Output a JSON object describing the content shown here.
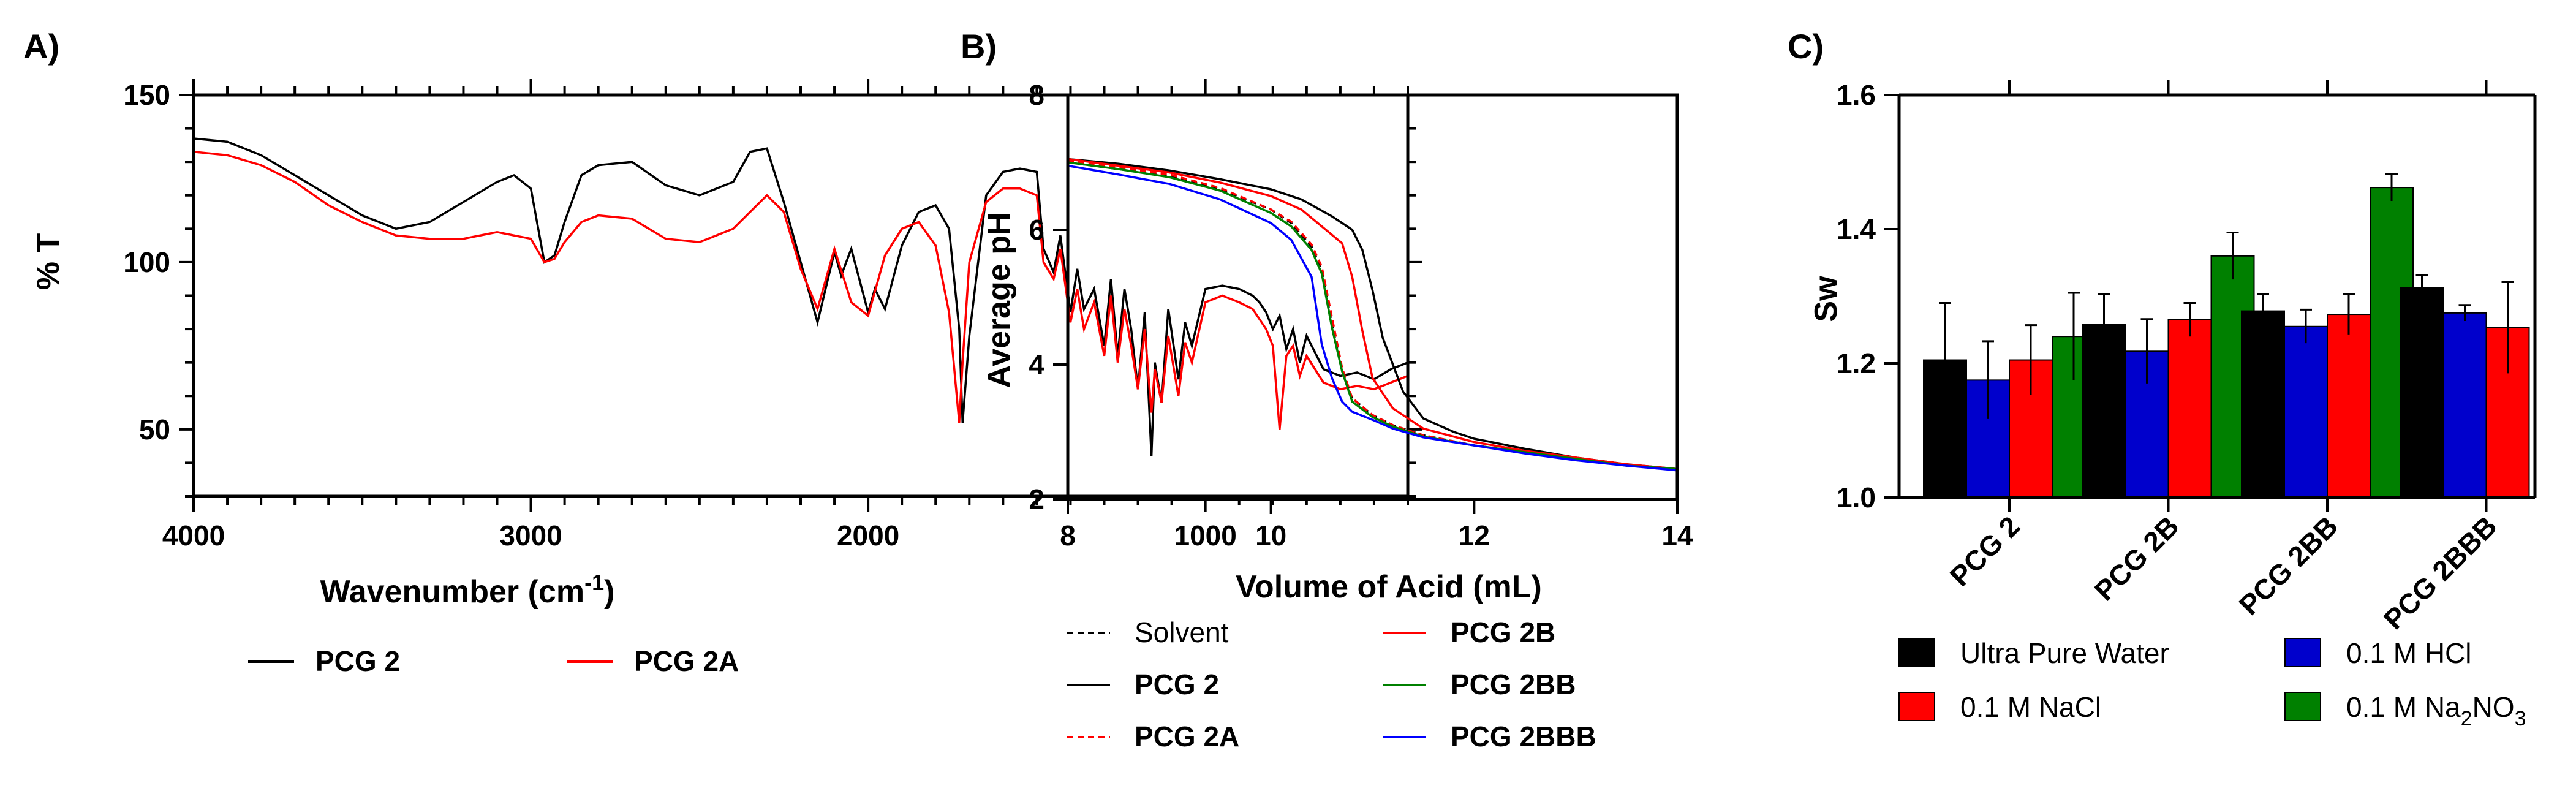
{
  "chart_data": [
    {
      "panel_label": "A)",
      "type": "line",
      "title": "",
      "xlabel": "Wavenumber (cm",
      "xlabel_sup": "-1",
      "xlabel_end": ")",
      "ylabel": "% T",
      "xlim": [
        4000,
        400
      ],
      "ylim": [
        30,
        150
      ],
      "xticks": [
        4000,
        3000,
        2000,
        1000
      ],
      "yticks": [
        50,
        100,
        150
      ],
      "series": [
        {
          "name": "PCG 2",
          "color": "#000000",
          "dash": "solid",
          "x": [
            4000,
            3900,
            3800,
            3700,
            3600,
            3500,
            3400,
            3300,
            3200,
            3100,
            3050,
            3000,
            2960,
            2930,
            2900,
            2850,
            2800,
            2700,
            2600,
            2500,
            2400,
            2350,
            2300,
            2250,
            2200,
            2150,
            2100,
            2080,
            2050,
            2000,
            1980,
            1950,
            1900,
            1850,
            1800,
            1760,
            1730,
            1720,
            1700,
            1650,
            1600,
            1550,
            1500,
            1480,
            1450,
            1430,
            1400,
            1380,
            1360,
            1330,
            1300,
            1280,
            1260,
            1240,
            1220,
            1200,
            1180,
            1160,
            1150,
            1130,
            1110,
            1080,
            1060,
            1040,
            1000,
            950,
            900,
            860,
            840,
            820,
            800,
            780,
            760,
            740,
            720,
            700,
            650,
            600,
            550,
            500,
            450,
            400
          ],
          "y": [
            137,
            136,
            132,
            126,
            120,
            114,
            110,
            112,
            118,
            124,
            126,
            122,
            100,
            102,
            112,
            126,
            129,
            130,
            123,
            120,
            124,
            133,
            134,
            118,
            100,
            82,
            103,
            96,
            104,
            85,
            92,
            86,
            105,
            115,
            117,
            110,
            80,
            52,
            78,
            120,
            127,
            128,
            127,
            104,
            97,
            108,
            85,
            98,
            86,
            92,
            75,
            95,
            72,
            92,
            80,
            62,
            85,
            42,
            70,
            58,
            86,
            65,
            82,
            75,
            92,
            93,
            92,
            90,
            88,
            85,
            80,
            84,
            74,
            80,
            70,
            78,
            68,
            66,
            67,
            65,
            68,
            70
          ]
        },
        {
          "name": "PCG 2A",
          "color": "#ff0000",
          "dash": "solid",
          "x": [
            4000,
            3900,
            3800,
            3700,
            3600,
            3500,
            3400,
            3300,
            3200,
            3100,
            3000,
            2960,
            2930,
            2900,
            2850,
            2800,
            2700,
            2600,
            2500,
            2400,
            2350,
            2300,
            2250,
            2200,
            2150,
            2100,
            2050,
            2000,
            1950,
            1900,
            1850,
            1800,
            1760,
            1730,
            1720,
            1700,
            1650,
            1600,
            1550,
            1500,
            1480,
            1450,
            1430,
            1400,
            1380,
            1360,
            1330,
            1300,
            1280,
            1260,
            1240,
            1220,
            1200,
            1180,
            1160,
            1150,
            1130,
            1110,
            1080,
            1060,
            1040,
            1000,
            950,
            900,
            860,
            840,
            820,
            800,
            780,
            760,
            740,
            720,
            700,
            650,
            600,
            550,
            500,
            450,
            400
          ],
          "y": [
            133,
            132,
            129,
            124,
            117,
            112,
            108,
            107,
            107,
            109,
            107,
            100,
            101,
            106,
            112,
            114,
            113,
            107,
            106,
            110,
            115,
            120,
            115,
            98,
            86,
            104,
            88,
            84,
            102,
            110,
            112,
            105,
            85,
            52,
            70,
            100,
            118,
            122,
            122,
            120,
            100,
            95,
            104,
            82,
            92,
            80,
            88,
            72,
            90,
            70,
            86,
            75,
            62,
            80,
            55,
            68,
            58,
            78,
            60,
            76,
            70,
            88,
            90,
            88,
            86,
            83,
            80,
            75,
            50,
            72,
            75,
            66,
            72,
            64,
            62,
            63,
            62,
            64,
            66
          ]
        }
      ],
      "legend_position": "bottom",
      "legend_columns": 2
    },
    {
      "panel_label": "B)",
      "type": "line",
      "title": "",
      "xlabel": "Volume of Acid  (mL)",
      "ylabel": "Average pH",
      "xlim": [
        8,
        14
      ],
      "ylim": [
        2,
        8
      ],
      "xticks": [
        8,
        10,
        12,
        14
      ],
      "yticks": [
        2,
        4,
        6,
        8
      ],
      "series": [
        {
          "name": "Solvent",
          "color": "#000000",
          "dash": "dashed",
          "bold_label": false,
          "x": [
            8,
            8.5,
            9,
            9.5,
            10,
            10.2,
            10.4,
            10.5,
            10.6,
            10.7,
            10.8,
            11,
            11.2,
            11.5,
            12,
            12.5,
            13,
            13.5,
            14
          ],
          "y": [
            7.0,
            6.9,
            6.8,
            6.6,
            6.3,
            6.1,
            5.75,
            5.4,
            4.6,
            3.9,
            3.5,
            3.25,
            3.1,
            2.95,
            2.8,
            2.7,
            2.6,
            2.5,
            2.45
          ]
        },
        {
          "name": "PCG 2",
          "color": "#000000",
          "dash": "solid",
          "bold_label": true,
          "x": [
            8,
            8.5,
            9,
            9.5,
            10,
            10.3,
            10.6,
            10.8,
            10.9,
            11,
            11.1,
            11.3,
            11.5,
            11.8,
            12,
            12.5,
            13,
            13.5,
            14
          ],
          "y": [
            7.05,
            6.98,
            6.88,
            6.75,
            6.6,
            6.45,
            6.2,
            6.0,
            5.7,
            5.1,
            4.4,
            3.6,
            3.2,
            3.0,
            2.9,
            2.75,
            2.62,
            2.52,
            2.45
          ]
        },
        {
          "name": "PCG 2A",
          "color": "#ff0000",
          "dash": "dashed",
          "bold_label": true,
          "x": [
            8,
            8.5,
            9,
            9.5,
            10,
            10.2,
            10.4,
            10.5,
            10.6,
            10.7,
            10.8,
            11,
            11.2,
            11.5,
            12,
            12.5,
            13,
            13.5,
            14
          ],
          "y": [
            7.02,
            6.92,
            6.82,
            6.62,
            6.3,
            6.12,
            5.78,
            5.45,
            4.7,
            3.95,
            3.5,
            3.25,
            3.1,
            2.95,
            2.8,
            2.7,
            2.6,
            2.5,
            2.45
          ]
        },
        {
          "name": "PCG 2B",
          "color": "#ff0000",
          "dash": "solid",
          "bold_label": true,
          "x": [
            8,
            8.5,
            9,
            9.5,
            10,
            10.3,
            10.5,
            10.7,
            10.8,
            10.9,
            11,
            11.2,
            11.5,
            12,
            12.5,
            13,
            13.5,
            14
          ],
          "y": [
            7.05,
            6.95,
            6.85,
            6.7,
            6.5,
            6.3,
            6.05,
            5.8,
            5.3,
            4.5,
            3.8,
            3.35,
            3.05,
            2.85,
            2.72,
            2.62,
            2.52,
            2.45
          ]
        },
        {
          "name": "PCG 2BB",
          "color": "#008000",
          "dash": "solid",
          "bold_label": true,
          "x": [
            8,
            8.5,
            9,
            9.5,
            10,
            10.2,
            10.4,
            10.5,
            10.6,
            10.7,
            10.8,
            11,
            11.2,
            11.5,
            12,
            12.5,
            13,
            13.5,
            14
          ],
          "y": [
            7.0,
            6.9,
            6.78,
            6.58,
            6.25,
            6.05,
            5.7,
            5.35,
            4.55,
            3.9,
            3.45,
            3.22,
            3.08,
            2.93,
            2.8,
            2.7,
            2.6,
            2.5,
            2.45
          ]
        },
        {
          "name": "PCG 2BBB",
          "color": "#0000ff",
          "dash": "solid",
          "bold_label": true,
          "x": [
            8,
            8.5,
            9,
            9.5,
            10,
            10.2,
            10.4,
            10.5,
            10.6,
            10.7,
            10.8,
            11,
            11.2,
            11.5,
            12,
            12.5,
            13,
            13.5,
            14
          ],
          "y": [
            6.95,
            6.82,
            6.68,
            6.45,
            6.1,
            5.85,
            5.3,
            4.3,
            3.8,
            3.45,
            3.3,
            3.18,
            3.05,
            2.92,
            2.8,
            2.68,
            2.58,
            2.5,
            2.43
          ]
        }
      ],
      "legend_position": "bottom",
      "legend_columns": 2
    },
    {
      "panel_label": "C)",
      "type": "bar",
      "title": "",
      "xlabel": "",
      "ylabel": "Sw",
      "ylim": [
        1.0,
        1.6
      ],
      "yticks": [
        "1.0",
        "1.2",
        "1.4",
        "1.6"
      ],
      "categories": [
        "PCG 2",
        "PCG 2B",
        "PCG 2BB",
        "PCG 2BBB"
      ],
      "series": [
        {
          "name": "Ultra Pure Water",
          "color": "#000000",
          "values": [
            1.205,
            1.258,
            1.278,
            1.313
          ],
          "errors": [
            0.085,
            0.045,
            0.025,
            0.018
          ]
        },
        {
          "name": "0.1 M HCl",
          "color": "#0000cc",
          "values": [
            1.175,
            1.218,
            1.255,
            1.275
          ],
          "errors": [
            0.058,
            0.048,
            0.025,
            0.012
          ]
        },
        {
          "name": "0.1 M NaCl",
          "color": "#ff0000",
          "values": [
            1.205,
            1.265,
            1.273,
            1.253
          ],
          "errors": [
            0.052,
            0.025,
            0.03,
            0.068
          ]
        },
        {
          "name": "0.1 M Na2NO3",
          "display": [
            "0.1 M Na",
            "2",
            "NO",
            "3"
          ],
          "color": "#008000",
          "values": [
            1.24,
            1.36,
            1.462,
            null
          ],
          "errors": [
            0.065,
            0.035,
            0.02,
            null
          ]
        }
      ],
      "legend_position": "bottom",
      "legend_columns": 2
    }
  ]
}
